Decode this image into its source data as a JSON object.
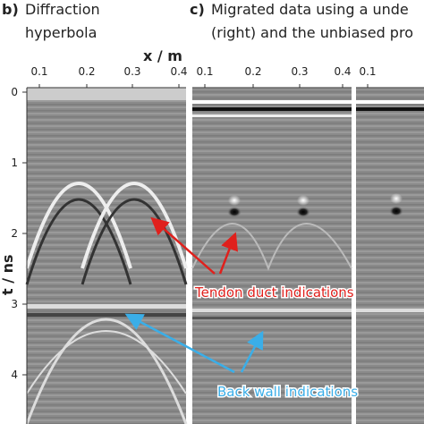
{
  "panel_b": {
    "letter": "b)",
    "title_lines": [
      "Diffraction",
      "hyperbola"
    ],
    "x_ticks": [
      "0.1",
      "0.2",
      "0.3",
      "0.4"
    ]
  },
  "panel_c": {
    "letter": "c)",
    "title_lines": [
      "Migrated data using a unde",
      "(right) and the unbiased pro"
    ],
    "x_ticks_left": [
      "0.1",
      "0.2",
      "0.3",
      "0.4"
    ],
    "x_ticks_right": [
      "0.1"
    ]
  },
  "x_axis_label": "x / m",
  "y_axis_label": "t / ns",
  "y_ticks": [
    "0",
    "1",
    "2",
    "3",
    "4"
  ],
  "annotations": {
    "tendon": "Tendon duct indications",
    "back_wall": "Back wall indications"
  }
}
